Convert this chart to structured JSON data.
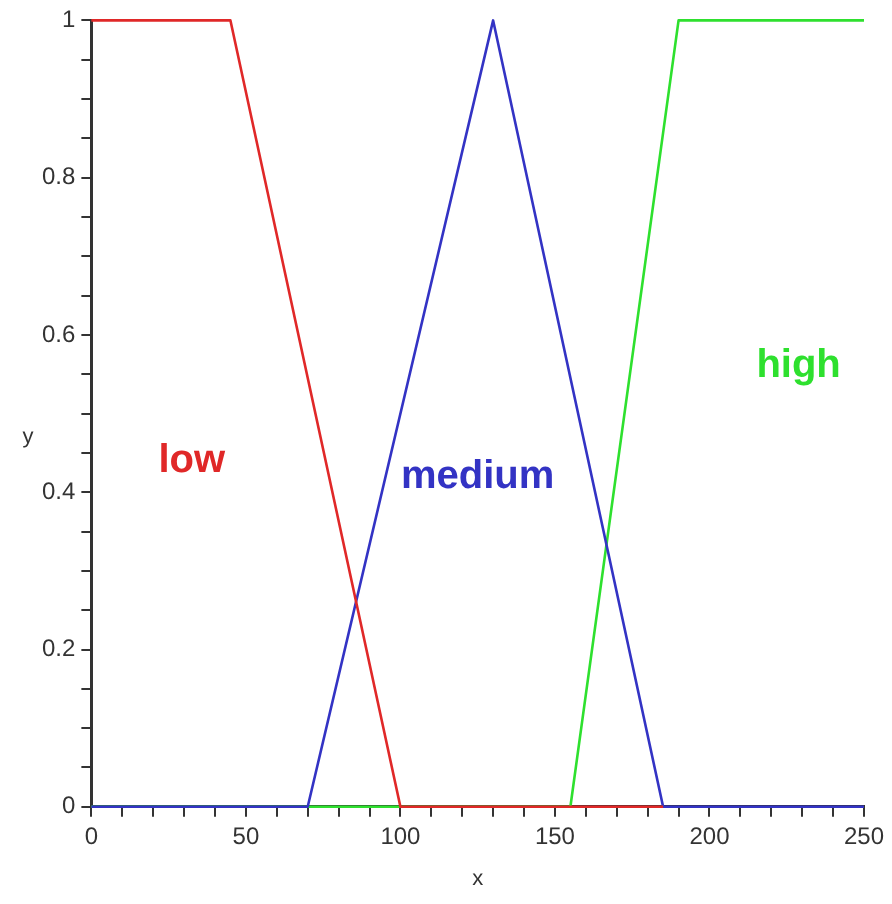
{
  "chart_data": {
    "type": "line",
    "xlabel": "x",
    "ylabel": "y",
    "xlim": [
      0,
      250
    ],
    "ylim": [
      0,
      1
    ],
    "xticks": [
      0,
      {
        "value": 10,
        "label": null
      },
      {
        "value": 20,
        "label": null
      },
      {
        "value": 30,
        "label": null
      },
      {
        "value": 40,
        "label": null
      },
      50,
      {
        "value": 60,
        "label": null
      },
      {
        "value": 70,
        "label": null
      },
      {
        "value": 80,
        "label": null
      },
      {
        "value": 90,
        "label": null
      },
      100,
      {
        "value": 110,
        "label": null
      },
      {
        "value": 120,
        "label": null
      },
      {
        "value": 130,
        "label": null
      },
      {
        "value": 140,
        "label": null
      },
      150,
      {
        "value": 160,
        "label": null
      },
      {
        "value": 170,
        "label": null
      },
      {
        "value": 180,
        "label": null
      },
      {
        "value": 190,
        "label": null
      },
      200,
      {
        "value": 210,
        "label": null
      },
      {
        "value": 220,
        "label": null
      },
      {
        "value": 230,
        "label": null
      },
      {
        "value": 240,
        "label": null
      },
      250
    ],
    "yticks": [
      0,
      {
        "value": 0.05,
        "label": null
      },
      {
        "value": 0.1,
        "label": null
      },
      {
        "value": 0.15,
        "label": null
      },
      0.2,
      {
        "value": 0.25,
        "label": null
      },
      {
        "value": 0.3,
        "label": null
      },
      {
        "value": 0.35,
        "label": null
      },
      0.4,
      {
        "value": 0.45,
        "label": null
      },
      {
        "value": 0.5,
        "label": null
      },
      {
        "value": 0.55,
        "label": null
      },
      0.6,
      {
        "value": 0.65,
        "label": null
      },
      {
        "value": 0.7,
        "label": null
      },
      {
        "value": 0.75,
        "label": null
      },
      0.8,
      {
        "value": 0.85,
        "label": null
      },
      {
        "value": 0.9,
        "label": null
      },
      {
        "value": 0.95,
        "label": null
      },
      1
    ],
    "grid": false,
    "legend": false,
    "marker": "none",
    "line_style": "solid",
    "series": [
      {
        "name": "low",
        "color": "#e02828",
        "x": [
          0,
          45,
          100,
          185
        ],
        "values": [
          1,
          1,
          0,
          0
        ]
      },
      {
        "name": "medium",
        "color": "#3333c4",
        "x": [
          0,
          70,
          130,
          185,
          250
        ],
        "values": [
          0,
          0,
          1,
          0,
          0
        ]
      },
      {
        "name": "high",
        "color": "#2ee02e",
        "x": [
          0,
          155,
          190,
          250
        ],
        "values": [
          0,
          0,
          1,
          1
        ]
      }
    ]
  }
}
